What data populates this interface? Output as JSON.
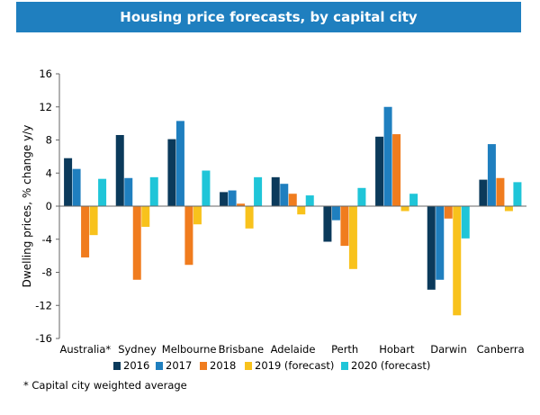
{
  "chart_data": {
    "type": "bar",
    "title": "Housing price forecasts, by capital city",
    "ylabel": "Dwelling prices, % change y/y",
    "xlabel": "",
    "ylim": [
      -16,
      16
    ],
    "yticks": [
      16,
      12,
      8,
      4,
      0,
      -4,
      -8,
      -12,
      -16
    ],
    "categories": [
      "Australia*",
      "Sydney",
      "Melbourne",
      "Brisbane",
      "Adelaide",
      "Perth",
      "Hobart",
      "Darwin",
      "Canberra"
    ],
    "series": [
      {
        "name": "2016",
        "color": "#0b3a5b",
        "values": [
          5.8,
          8.6,
          8.1,
          1.7,
          3.5,
          -4.3,
          8.4,
          -10.1,
          3.2
        ]
      },
      {
        "name": "2017",
        "color": "#1f7fbf",
        "values": [
          4.5,
          3.4,
          10.3,
          1.9,
          2.7,
          -1.7,
          12.0,
          -8.9,
          7.5
        ]
      },
      {
        "name": "2018",
        "color": "#f07c1e",
        "values": [
          -6.2,
          -8.9,
          -7.1,
          0.3,
          1.5,
          -4.8,
          8.7,
          -1.5,
          3.4
        ]
      },
      {
        "name": "2019 (forecast)",
        "color": "#f8c21c",
        "values": [
          -3.5,
          -2.5,
          -2.2,
          -2.7,
          -1.0,
          -7.6,
          -0.6,
          -13.2,
          -0.6
        ]
      },
      {
        "name": "2020 (forecast)",
        "color": "#1fc5d8",
        "values": [
          3.3,
          3.5,
          4.3,
          3.5,
          1.3,
          2.2,
          1.5,
          -3.9,
          2.9
        ]
      }
    ],
    "legend": "bottom",
    "grid": false
  },
  "footnote": "* Capital city weighted average"
}
